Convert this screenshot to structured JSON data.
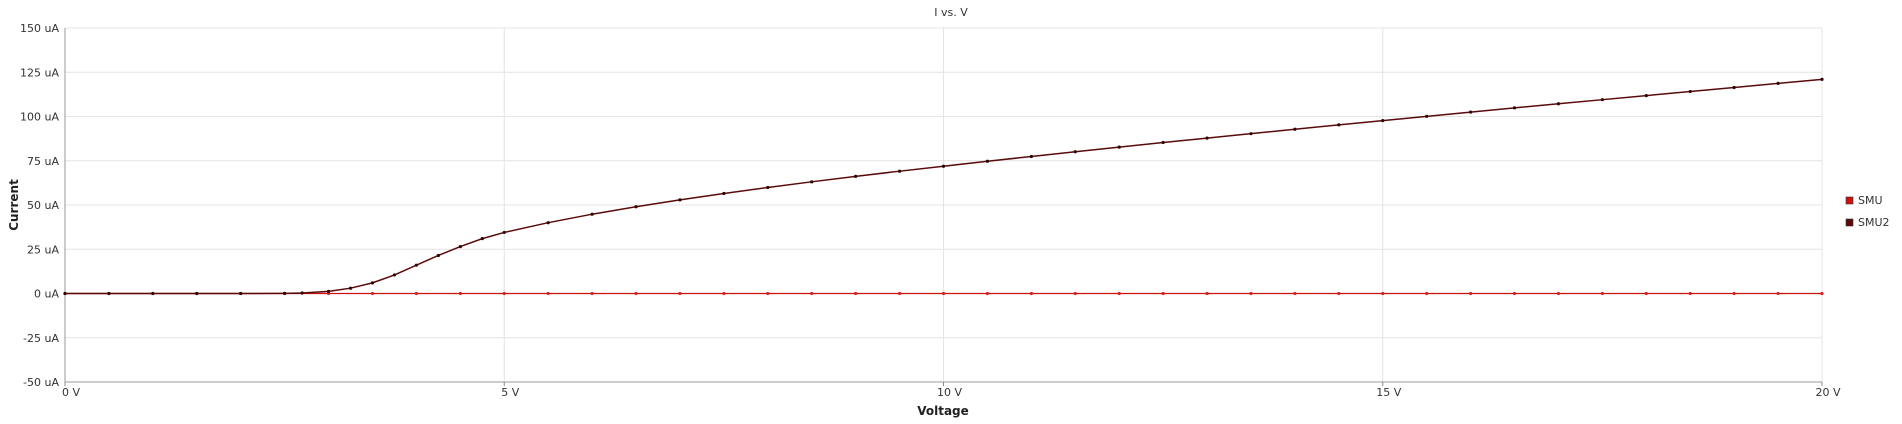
{
  "chart_data": {
    "type": "line",
    "title": "I vs. V",
    "xlabel": "Voltage",
    "ylabel": "Current",
    "xlim": [
      0,
      20
    ],
    "ylim": [
      -50,
      150
    ],
    "x_ticks": [
      {
        "value": 0,
        "label": "0 V"
      },
      {
        "value": 5,
        "label": "5 V"
      },
      {
        "value": 10,
        "label": "10 V"
      },
      {
        "value": 15,
        "label": "15 V"
      },
      {
        "value": 20,
        "label": "20 V"
      }
    ],
    "y_ticks": [
      {
        "value": 150,
        "label": "150 uA"
      },
      {
        "value": 125,
        "label": "125 uA"
      },
      {
        "value": 100,
        "label": "100 uA"
      },
      {
        "value": 75,
        "label": "75 uA"
      },
      {
        "value": 50,
        "label": "50 uA"
      },
      {
        "value": 25,
        "label": "25 uA"
      },
      {
        "value": 0,
        "label": "0 uA"
      },
      {
        "value": -25,
        "label": "-25 uA"
      },
      {
        "value": -50,
        "label": "-50 uA"
      }
    ],
    "grid": true,
    "legend_position": "right",
    "x_unit": "V",
    "y_unit": "uA",
    "series": [
      {
        "name": "SMU",
        "color": "#cc1111",
        "x": [
          0,
          0.5,
          1,
          1.5,
          2,
          2.5,
          3,
          3.5,
          4,
          4.5,
          5,
          5.5,
          6,
          6.5,
          7,
          7.5,
          8,
          8.5,
          9,
          9.5,
          10,
          10.5,
          11,
          11.5,
          12,
          12.5,
          13,
          13.5,
          14,
          14.5,
          15,
          15.5,
          16,
          16.5,
          17,
          17.5,
          18,
          18.5,
          19,
          19.5,
          20
        ],
        "y": [
          0,
          0,
          0,
          0,
          0,
          0,
          0,
          0,
          0,
          0,
          0,
          0,
          0,
          0,
          0,
          0,
          0,
          0,
          0,
          0,
          0,
          0,
          0,
          0,
          0,
          0,
          0,
          0,
          0,
          0,
          0,
          0,
          0,
          0,
          0,
          0,
          0,
          0,
          0,
          0,
          0
        ]
      },
      {
        "name": "SMU2",
        "color": "#5a0a0a",
        "x": [
          0,
          0.5,
          1,
          1.5,
          2,
          2.5,
          2.7,
          3,
          3.25,
          3.5,
          3.75,
          4,
          4.25,
          4.5,
          4.75,
          5,
          5.5,
          6,
          6.5,
          7,
          7.5,
          8,
          8.5,
          9,
          9.5,
          10,
          10.5,
          11,
          11.5,
          12,
          12.5,
          13,
          13.5,
          14,
          14.5,
          15,
          15.5,
          16,
          16.5,
          17,
          17.5,
          18,
          18.5,
          19,
          19.5,
          20
        ],
        "y": [
          0,
          0,
          0,
          0,
          0,
          0.1,
          0.3,
          1.2,
          3,
          6,
          10.5,
          16,
          21.5,
          26.5,
          31,
          34.5,
          40,
          44.8,
          49,
          52.9,
          56.5,
          59.9,
          63.1,
          66.2,
          69.1,
          71.9,
          74.7,
          77.4,
          80.1,
          82.7,
          85.3,
          87.8,
          90.3,
          92.8,
          95.3,
          97.7,
          100.1,
          102.5,
          104.9,
          107.2,
          109.5,
          111.8,
          114.1,
          116.4,
          118.7,
          121
        ]
      }
    ]
  }
}
